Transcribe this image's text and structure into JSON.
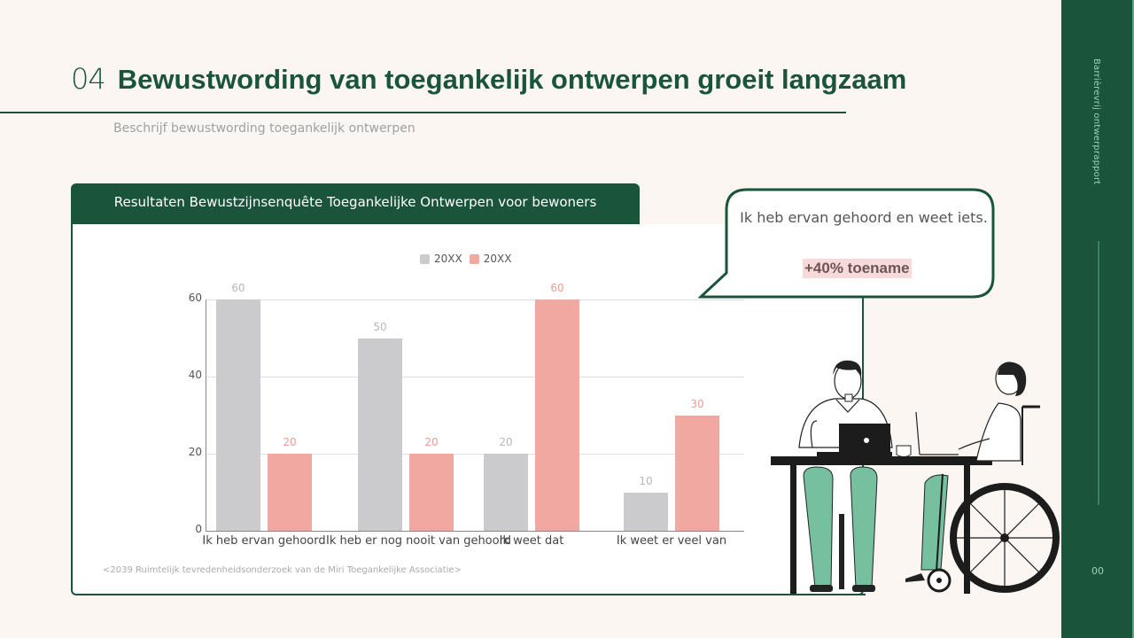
{
  "slide": {
    "number": "04",
    "title": "Bewustwording van toegankelijk ontwerpen groeit langzaam",
    "subtitle": "Beschrijf bewustwording toegankelijk ontwerpen",
    "page_number": "00"
  },
  "sidebar": {
    "title": "Barrièrevrij ontwerprapport"
  },
  "card": {
    "header": "Resultaten Bewustzijnsenquête Toegankelijke Ontwerpen voor bewoners",
    "source": "<2039 Ruimtelijk tevredenheidsonderzoek van de Miri Toegankelijke Associatie>"
  },
  "callout": {
    "text": "Ik heb ervan gehoord en weet iets.",
    "highlight": "+40% toename"
  },
  "colors": {
    "brand_green": "#1a543a",
    "series_1": "#cbcbce",
    "series_2": "#f0a8a0",
    "highlight_bg": "#f9dada",
    "background": "#fcf6f2"
  },
  "chart_data": {
    "type": "bar",
    "title": "Resultaten Bewustzijnsenquête Toegankelijke Ontwerpen voor bewoners",
    "categories": [
      "Ik heb ervan gehoord",
      "Ik heb er nog nooit van gehoord",
      "Ik weet dat",
      "Ik weet er veel van"
    ],
    "series": [
      {
        "name": "20XX",
        "color": "#cbcbce",
        "values": [
          60,
          50,
          20,
          10
        ]
      },
      {
        "name": "20XX",
        "color": "#f0a8a0",
        "values": [
          20,
          20,
          60,
          30
        ]
      }
    ],
    "xlabel": "",
    "ylabel": "",
    "ylim": [
      0,
      60
    ],
    "yticks": [
      "0",
      "20",
      "40",
      "60"
    ],
    "grid": true,
    "legend_position": "top"
  }
}
